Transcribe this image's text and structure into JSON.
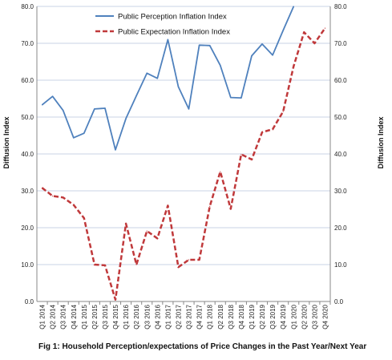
{
  "chart_data": {
    "type": "line",
    "caption": "Fig 1: Household Perception/expectations of Price Changes in the Past Year/Next Year",
    "ylabel_left": "Diffusion Index",
    "ylabel_right": "Diffusion Index",
    "ylim": [
      0,
      80
    ],
    "yticks": [
      "0.0",
      "10.0",
      "20.0",
      "30.0",
      "40.0",
      "50.0",
      "60.0",
      "70.0",
      "80.0"
    ],
    "grid": true,
    "legend_position": "top-center",
    "categories": [
      "Q1 2014",
      "Q2 2014",
      "Q3 2014",
      "Q4 2014",
      "Q1 2015",
      "Q2 2015",
      "Q3 2015",
      "Q4 2015",
      "Q1 2016",
      "Q2 2016",
      "Q3 2016",
      "Q4 2016",
      "Q1 2017",
      "Q2 2017",
      "Q3 2017",
      "Q4 2017",
      "Q1 2018",
      "Q2 2018",
      "Q3 2018",
      "Q4 2018",
      "Q1 2019",
      "Q2 2019",
      "Q3 2019",
      "Q4 2019",
      "Q1 2020",
      "Q2 2020",
      "Q3 2020",
      "Q4 2020"
    ],
    "series": [
      {
        "name": "Public Perception Inflation Index",
        "color": "#4f81bd",
        "style": "solid",
        "values": [
          53.3,
          55.6,
          51.8,
          44.4,
          45.6,
          52.2,
          52.4,
          41.1,
          49.6,
          55.8,
          61.9,
          60.5,
          71.0,
          58.2,
          52.2,
          69.5,
          69.4,
          64.0,
          55.3,
          55.2,
          66.6,
          69.8,
          66.8,
          73.5,
          80.0,
          null,
          null,
          null
        ]
      },
      {
        "name": "Public Expectation Inflation Index",
        "color": "#c0393b",
        "style": "dashed",
        "values": [
          30.8,
          28.6,
          28.2,
          26.2,
          22.6,
          10.0,
          9.8,
          0.5,
          21.1,
          10.0,
          19.1,
          17.1,
          26.0,
          9.3,
          11.3,
          11.3,
          25.8,
          35.2,
          25.1,
          39.9,
          38.5,
          45.9,
          46.7,
          51.5,
          63.8,
          73.0,
          70.0,
          74.1
        ]
      }
    ]
  }
}
